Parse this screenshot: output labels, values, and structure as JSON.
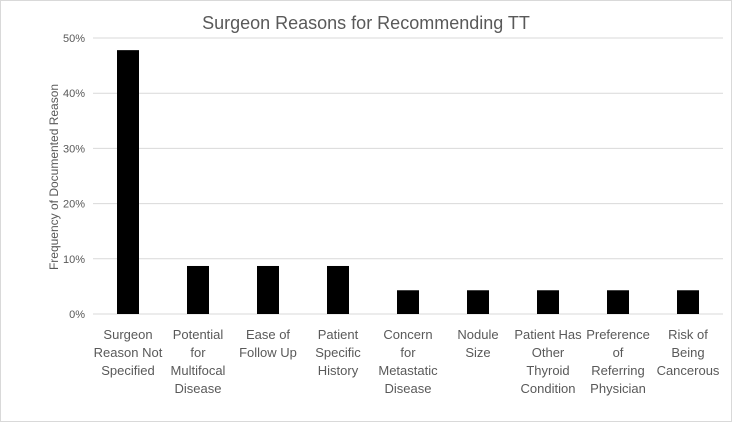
{
  "chart_data": {
    "type": "bar",
    "title": "Surgeon Reasons for Recommending TT",
    "xlabel": "",
    "ylabel": "Frequency of Documented Reason",
    "ylim": [
      0,
      50
    ],
    "yticks": [
      "0%",
      "10%",
      "20%",
      "30%",
      "40%",
      "50%"
    ],
    "grid": true,
    "legend": "none",
    "bar_color": "#000000",
    "categories": [
      "Surgeon Reason Not Specified",
      "Potential for Multifocal Disease",
      "Ease of Follow Up",
      "Patient Specific History",
      "Concern for Metastatic Disease",
      "Nodule Size",
      "Patient Has Other Thyroid Condition",
      "Preference of Referring Physician",
      "Risk of Being Cancerous"
    ],
    "category_lines": [
      [
        "Surgeon",
        "Reason Not",
        "Specified"
      ],
      [
        "Potential",
        "for",
        "Multifocal",
        "Disease"
      ],
      [
        "Ease of",
        "Follow Up"
      ],
      [
        "Patient",
        "Specific",
        "History"
      ],
      [
        "Concern",
        "for",
        "Metastatic",
        "Disease"
      ],
      [
        "Nodule",
        "Size"
      ],
      [
        "Patient Has",
        "Other",
        "Thyroid",
        "Condition"
      ],
      [
        "Preference",
        "of",
        "Referring",
        "Physician"
      ],
      [
        "Risk of",
        "Being",
        "Cancerous"
      ]
    ],
    "values": [
      47.8,
      8.7,
      8.7,
      8.7,
      4.3,
      4.3,
      4.3,
      4.3,
      4.3
    ]
  }
}
